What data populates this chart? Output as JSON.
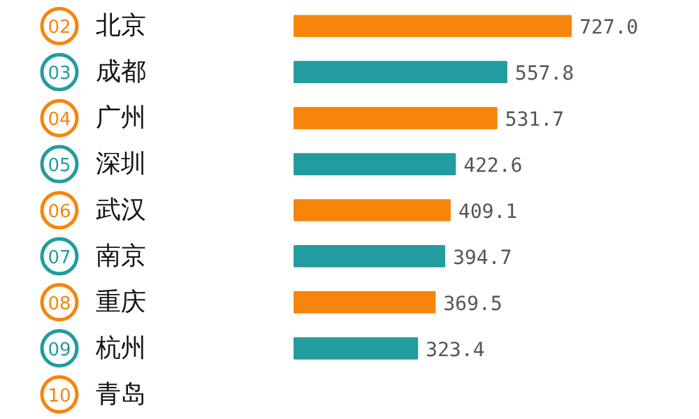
{
  "chart_data": {
    "type": "bar",
    "orientation": "horizontal",
    "categories": [
      "北京",
      "成都",
      "广州",
      "深圳",
      "武汉",
      "南京",
      "重庆",
      "杭州",
      "青岛"
    ],
    "values": [
      727.0,
      557.8,
      531.7,
      422.6,
      409.1,
      394.7,
      369.5,
      323.4,
      null
    ],
    "value_labels": [
      "727.0",
      "557.8",
      "531.7",
      "422.6",
      "409.1",
      "394.7",
      "369.5",
      "323.4",
      null
    ],
    "colors": [
      "#f7850c",
      "#229c9e",
      "#f7850c",
      "#229c9e",
      "#f7850c",
      "#229c9e",
      "#f7850c",
      "#229c9e",
      "#f7850c"
    ],
    "xlim": [
      0,
      1065
    ],
    "annotations": [
      "02",
      "03",
      "04",
      "05",
      "06",
      "07",
      "08",
      "09",
      "10"
    ]
  }
}
